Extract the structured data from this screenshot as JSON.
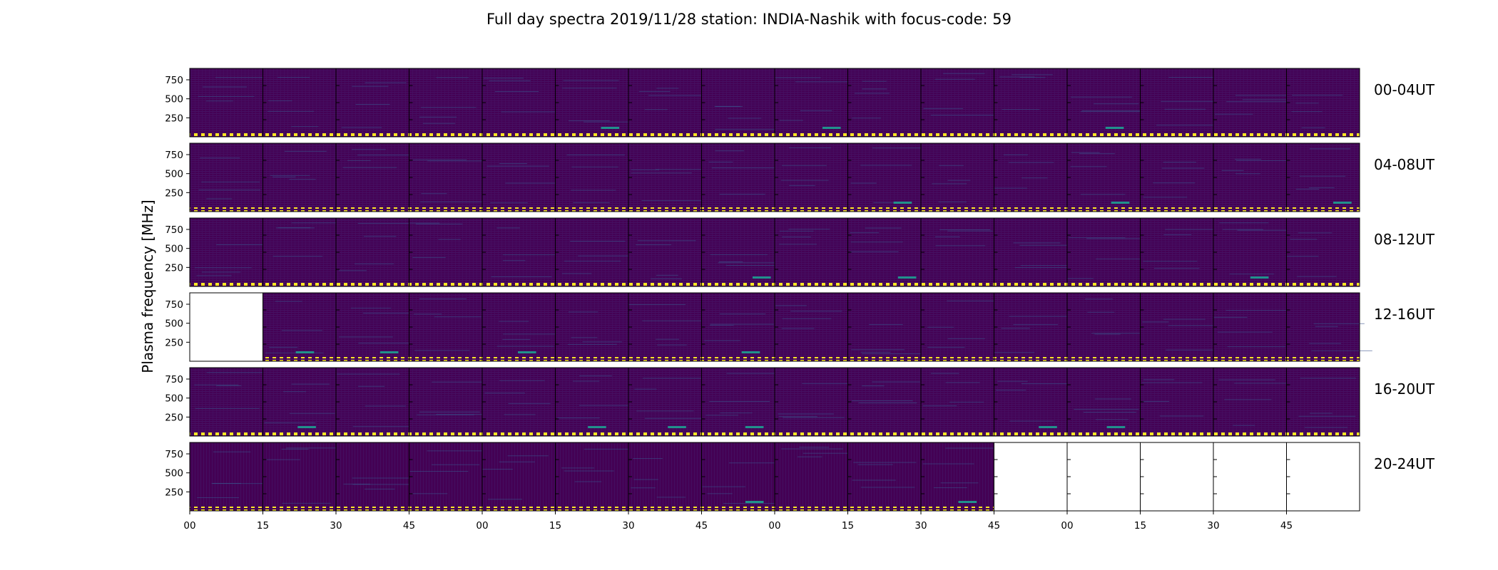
{
  "chart_data": {
    "type": "heatmap",
    "title": "Full day spectra 2019/11/28 station: INDIA-Nashik with focus-code: 59",
    "ylabel": "Plasma frequency [MHz]",
    "y_ticks": [
      "250",
      "500",
      "750"
    ],
    "ylim": [
      0,
      900
    ],
    "x_ticks": [
      "00",
      "15",
      "30",
      "45",
      "00",
      "15",
      "30",
      "45",
      "00",
      "15",
      "30",
      "45",
      "00",
      "15",
      "30",
      "45"
    ],
    "colormap": "viridis",
    "rows": [
      {
        "label": "00-04UT",
        "panels_with_data": [
          true,
          true,
          true,
          true,
          true,
          true,
          true,
          true,
          true,
          true,
          true,
          true,
          true,
          true,
          true,
          true
        ]
      },
      {
        "label": "04-08UT",
        "panels_with_data": [
          true,
          true,
          true,
          true,
          true,
          true,
          true,
          true,
          true,
          true,
          true,
          true,
          true,
          true,
          true,
          true
        ]
      },
      {
        "label": "08-12UT",
        "panels_with_data": [
          true,
          true,
          true,
          true,
          true,
          true,
          true,
          true,
          true,
          true,
          true,
          true,
          true,
          true,
          true,
          true
        ]
      },
      {
        "label": "12-16UT",
        "panels_with_data": [
          false,
          true,
          true,
          true,
          true,
          true,
          true,
          true,
          true,
          true,
          true,
          true,
          true,
          true,
          true,
          true
        ]
      },
      {
        "label": "16-20UT",
        "panels_with_data": [
          true,
          true,
          true,
          true,
          true,
          true,
          true,
          true,
          true,
          true,
          true,
          true,
          true,
          true,
          true,
          true
        ]
      },
      {
        "label": "20-24UT",
        "panels_with_data": [
          true,
          true,
          true,
          true,
          true,
          true,
          true,
          true,
          true,
          true,
          true,
          false,
          false,
          false,
          false,
          false
        ]
      }
    ]
  },
  "colors": {
    "background": "#ffffff",
    "spectrum_base": "#440154",
    "spectrum_noise": "#472c7a",
    "spectrum_signal": "#3b528b",
    "spectrum_strong": "#21918c",
    "marker": "#fde725",
    "frame": "#000000"
  }
}
